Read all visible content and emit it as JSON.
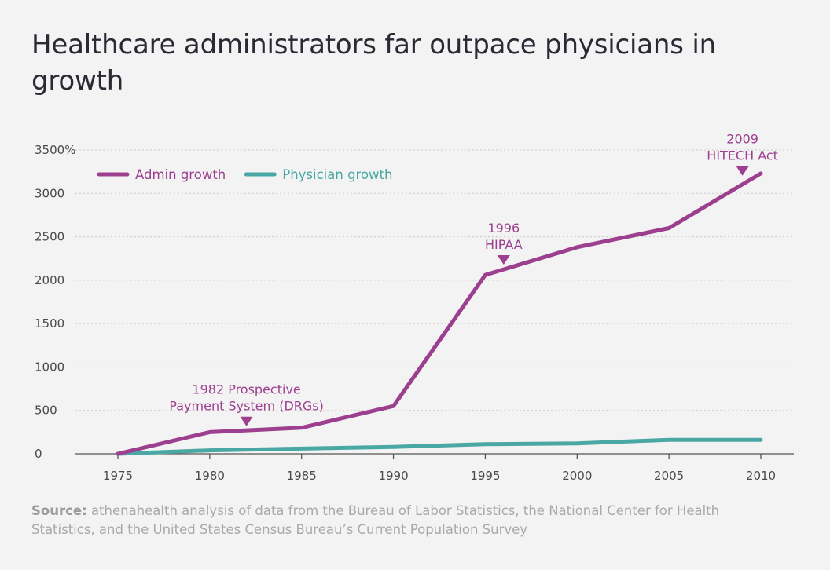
{
  "title": "Healthcare administrators far outpace physicians in growth",
  "source": {
    "label": "Source:",
    "text": "athenahealth analysis of data from the Bureau of Labor Statistics, the National Center for Health Statistics, and the United States Census Bureau’s Current Population Survey"
  },
  "colors": {
    "admin": "#9c3f8f",
    "physician": "#4aa8a4",
    "annotation": "#9c3f8f"
  },
  "chart_data": {
    "type": "line",
    "title": "Healthcare administrators far outpace physicians in growth",
    "xlabel": "",
    "ylabel": "",
    "x": [
      1975,
      1980,
      1985,
      1990,
      1995,
      2000,
      2005,
      2010
    ],
    "xlim": [
      1972,
      2012
    ],
    "ylim": [
      0,
      3500
    ],
    "yticks": [
      0,
      500,
      1000,
      1500,
      2000,
      2500,
      3000,
      3500
    ],
    "ytick_labels": [
      "0",
      "500",
      "1000",
      "1500",
      "2000",
      "2500",
      "3000",
      "3500%"
    ],
    "xtick_labels": [
      "1975",
      "1980",
      "1985",
      "1990",
      "1995",
      "2000",
      "2005",
      "2010"
    ],
    "grid": true,
    "legend_position": "top-left",
    "series": [
      {
        "name": "Admin growth",
        "color": "#9c3f8f",
        "values": [
          0,
          250,
          300,
          550,
          2060,
          2380,
          2600,
          3230
        ]
      },
      {
        "name": "Physician growth",
        "color": "#4aa8a4",
        "values": [
          0,
          40,
          60,
          80,
          110,
          120,
          160,
          160
        ]
      }
    ],
    "annotations": [
      {
        "x": 1982,
        "y": 265,
        "lines": [
          "1982 Prospective",
          "Payment System (DRGs)"
        ]
      },
      {
        "x": 1996,
        "y": 2125,
        "lines": [
          "1996",
          "HIPAA"
        ]
      },
      {
        "x": 2009,
        "y": 3150,
        "lines": [
          "2009",
          "HITECH Act"
        ]
      }
    ]
  }
}
